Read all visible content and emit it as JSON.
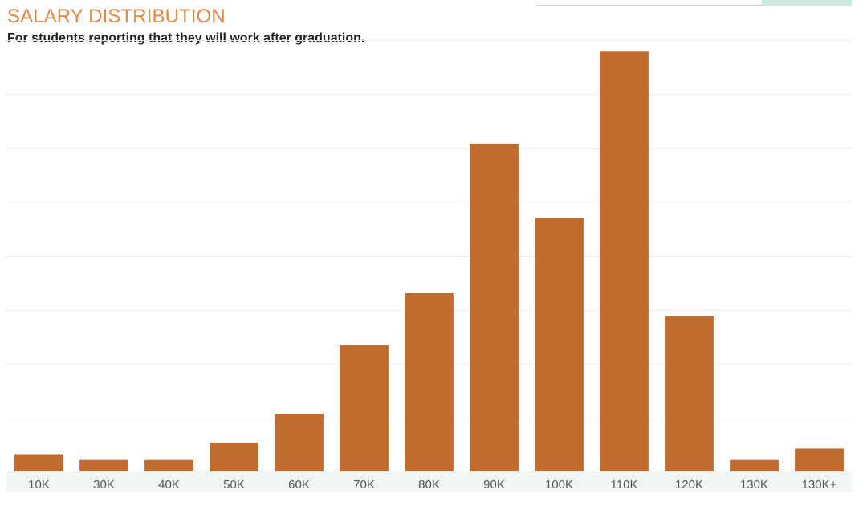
{
  "title": "SALARY DISTRIBUTION",
  "subtitle": "For students reporting that they will work after graduation.",
  "colors": {
    "bar": "#c16b2f",
    "title": "#e0894a",
    "gridline": "#eeeeee",
    "axis_band": "#f1f5f6"
  },
  "chart_data": {
    "type": "bar",
    "title": "SALARY DISTRIBUTION",
    "subtitle": "For students reporting that they will work after graduation.",
    "xlabel": "",
    "ylabel": "",
    "categories": [
      "10K",
      "30K",
      "40K",
      "50K",
      "60K",
      "70K",
      "80K",
      "90K",
      "100K",
      "110K",
      "120K",
      "130K",
      "130K+"
    ],
    "values": [
      3,
      2,
      2,
      5,
      10,
      22,
      31,
      57,
      44,
      73,
      27,
      2,
      4
    ],
    "ylim": [
      0,
      75
    ],
    "grid": true,
    "legend": "none"
  }
}
